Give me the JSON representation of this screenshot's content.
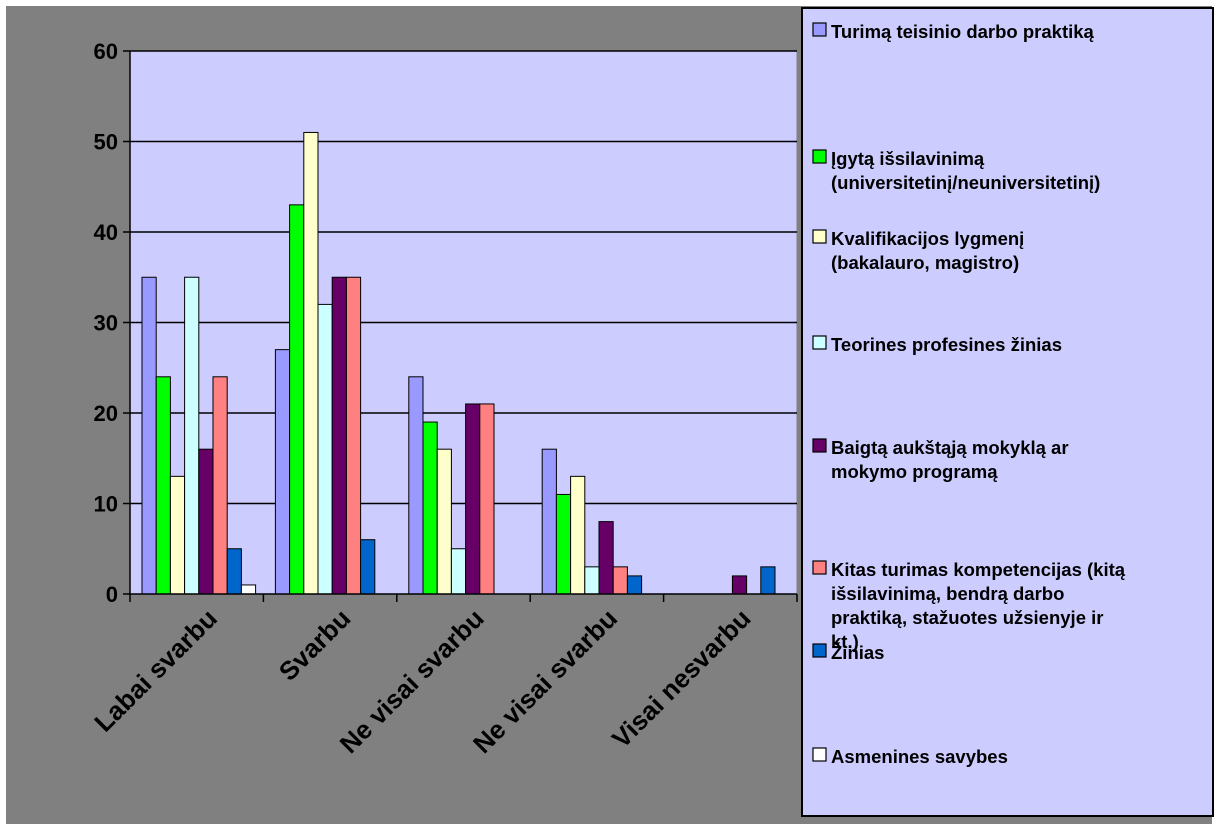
{
  "chart_data": {
    "type": "bar",
    "title": "",
    "xlabel": "",
    "ylabel": "",
    "ylim": [
      0,
      60
    ],
    "yticks": [
      0,
      10,
      20,
      30,
      40,
      50,
      60
    ],
    "grid": true,
    "legend_position": "right",
    "categories": [
      "Labai svarbu",
      "Svarbu",
      "Ne visai svarbu",
      "Ne visai svarbu",
      "Visai nesvarbu"
    ],
    "series": [
      {
        "name": "Turimą teisinio darbo praktiką",
        "color": "#9999FF",
        "values": [
          35,
          27,
          24,
          16,
          0
        ]
      },
      {
        "name": "Įgytą išsilavinimą (universitetinį/neuniversitetinį)",
        "color": "#00FF00",
        "values": [
          24,
          43,
          19,
          11,
          0
        ]
      },
      {
        "name": "Kvalifikacijos lygmenį (bakalauro, magistro)",
        "color": "#FFFFCC",
        "values": [
          13,
          51,
          16,
          13,
          0
        ]
      },
      {
        "name": "Teorines profesines žinias",
        "color": "#CCFFFF",
        "values": [
          35,
          32,
          5,
          3,
          0
        ]
      },
      {
        "name": "Baigtą aukštąją mokyklą ar mokymo programą",
        "color": "#660066",
        "values": [
          16,
          35,
          21,
          8,
          2
        ]
      },
      {
        "name": "Kitas turimas kompetencijas (kitą išsilavinimą, bendrą darbo praktiką, stažuotes užsienyje ir kt.)",
        "color": "#FF8080",
        "values": [
          24,
          35,
          21,
          3,
          0
        ]
      },
      {
        "name": "Žinias",
        "color": "#0066CC",
        "values": [
          5,
          6,
          0,
          2,
          3
        ]
      },
      {
        "name": "Asmenines savybes",
        "color": "#FFFFFF",
        "values": [
          1,
          0,
          0,
          0,
          0
        ]
      }
    ],
    "legend_lines": [
      [
        "Turimą teisinio darbo praktiką"
      ],
      [
        "Įgytą išsilavinimą",
        "(universitetinį/neuniversitetinį)"
      ],
      [
        "Kvalifikacijos lygmenį",
        "(bakalauro, magistro)"
      ],
      [
        "Teorines profesines žinias"
      ],
      [
        "Baigtą aukštąją mokyklą ar",
        "mokymo programą"
      ],
      [
        "Kitas turimas kompetencijas (kitą",
        "išsilavinimą, bendrą darbo",
        "praktiką, stažuotes užsienyje ir",
        "kt.)"
      ],
      [
        "Žinias"
      ],
      [
        "Asmenines savybes"
      ]
    ]
  }
}
